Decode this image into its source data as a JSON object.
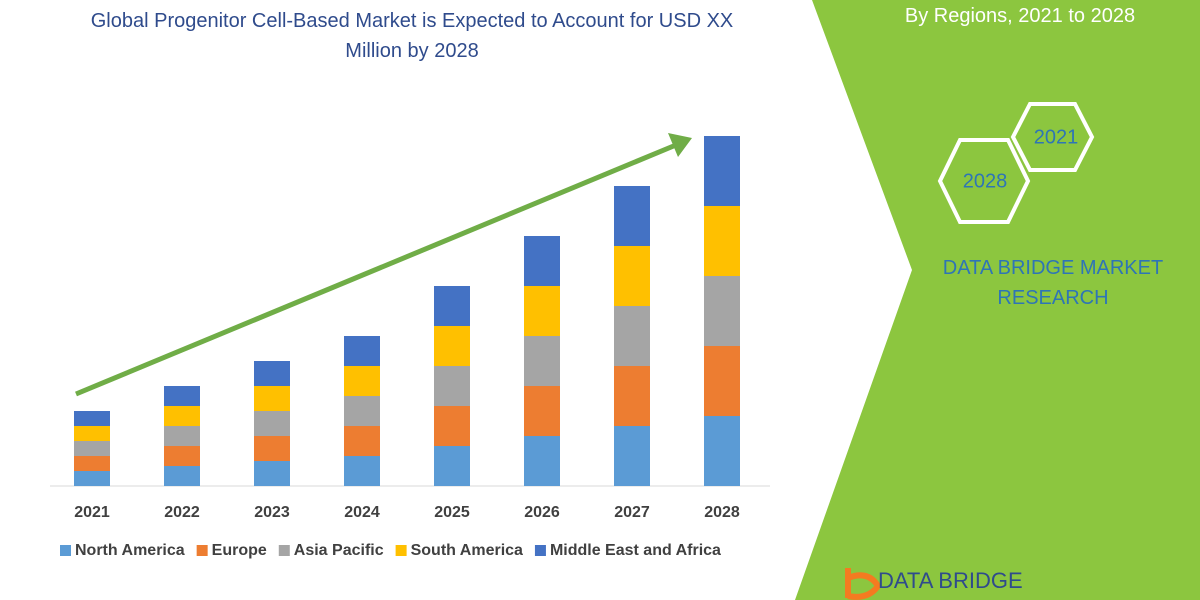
{
  "chart_data": {
    "type": "stacked_bar",
    "title": "Global Progenitor Cell-Based Market is Expected to Account for USD XX Million by 2028",
    "categories": [
      "2021",
      "2022",
      "2023",
      "2024",
      "2025",
      "2026",
      "2027",
      "2028"
    ],
    "series": [
      {
        "name": "North America",
        "color": "#5b9bd5",
        "values": [
          15,
          20,
          25,
          30,
          40,
          50,
          60,
          70
        ]
      },
      {
        "name": "Europe",
        "color": "#ed7d31",
        "values": [
          15,
          20,
          25,
          30,
          40,
          50,
          60,
          70
        ]
      },
      {
        "name": "Asia Pacific",
        "color": "#a5a5a5",
        "values": [
          15,
          20,
          25,
          30,
          40,
          50,
          60,
          70
        ]
      },
      {
        "name": "South America",
        "color": "#ffc000",
        "values": [
          15,
          20,
          25,
          30,
          40,
          50,
          60,
          70
        ]
      },
      {
        "name": "Middle East and Africa",
        "color": "#4472c4",
        "values": [
          15,
          20,
          25,
          30,
          40,
          50,
          60,
          70
        ]
      }
    ],
    "ylim": [
      0,
      352
    ]
  },
  "panel": {
    "subtitle": "By Regions, 2021 to 2028",
    "hex_labels": [
      "2021",
      "2028"
    ],
    "brand": "DATA BRIDGE MARKET RESEARCH",
    "logo": "DATA BRIDGE"
  }
}
